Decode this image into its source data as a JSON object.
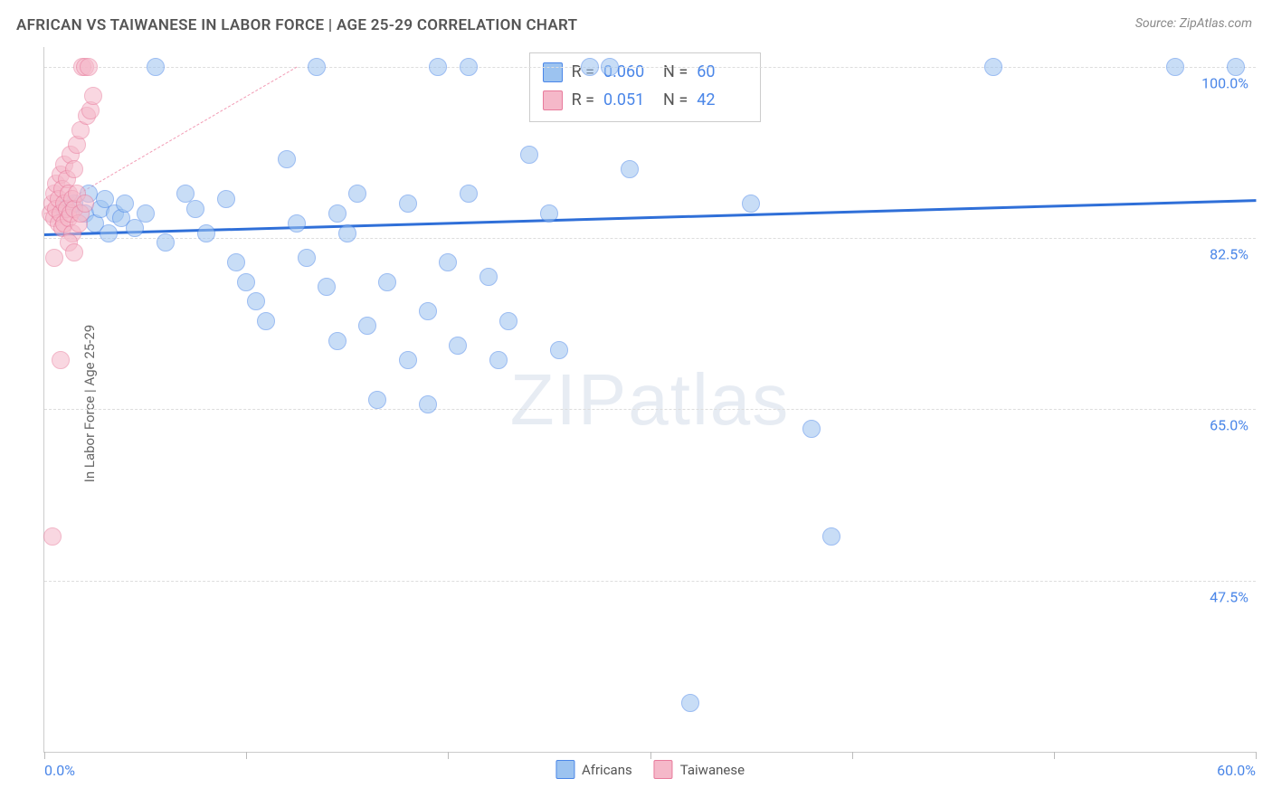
{
  "title": "AFRICAN VS TAIWANESE IN LABOR FORCE | AGE 25-29 CORRELATION CHART",
  "source": "Source: ZipAtlas.com",
  "y_axis_label": "In Labor Force | Age 25-29",
  "watermark": "ZIPatlas",
  "chart": {
    "type": "scatter",
    "xlim": [
      0.0,
      60.0
    ],
    "ylim": [
      30.0,
      102.0
    ],
    "x_ticks_minor": [
      0,
      10,
      20,
      30,
      40,
      50,
      60
    ],
    "x_tick_labels": {
      "min": "0.0%",
      "max": "60.0%"
    },
    "y_gridlines": [
      47.5,
      65.0,
      82.5,
      100.0
    ],
    "y_tick_labels": [
      "47.5%",
      "65.0%",
      "82.5%",
      "100.0%"
    ],
    "background_color": "#ffffff",
    "grid_color": "#dddddd",
    "axis_color": "#cccccc",
    "tick_label_color": "#4a86e8",
    "marker_radius": 10,
    "marker_opacity": 0.55,
    "series": [
      {
        "name": "Africans",
        "fill": "#9cc3f0",
        "stroke": "#4a86e8",
        "trend": {
          "y_at_xmin": 83.0,
          "y_at_xmax": 86.5,
          "color": "#2f6fd8",
          "width": 3,
          "dash": "solid"
        },
        "stats": {
          "R": "0.060",
          "N": "60"
        },
        "points": [
          [
            1.0,
            85.5
          ],
          [
            1.5,
            86.0
          ],
          [
            2.0,
            85.0
          ],
          [
            2.2,
            87.0
          ],
          [
            2.5,
            84.0
          ],
          [
            2.8,
            85.5
          ],
          [
            3.0,
            86.5
          ],
          [
            3.2,
            83.0
          ],
          [
            3.5,
            85.0
          ],
          [
            3.8,
            84.5
          ],
          [
            4.0,
            86.0
          ],
          [
            4.5,
            83.5
          ],
          [
            5.0,
            85.0
          ],
          [
            5.5,
            100.0
          ],
          [
            6.0,
            82.0
          ],
          [
            7.0,
            87.0
          ],
          [
            7.5,
            85.5
          ],
          [
            8.0,
            83.0
          ],
          [
            9.0,
            86.5
          ],
          [
            9.5,
            80.0
          ],
          [
            10.0,
            78.0
          ],
          [
            10.5,
            76.0
          ],
          [
            11.0,
            74.0
          ],
          [
            12.0,
            90.5
          ],
          [
            12.5,
            84.0
          ],
          [
            13.0,
            80.5
          ],
          [
            13.5,
            100.0
          ],
          [
            14.0,
            77.5
          ],
          [
            14.5,
            85.0
          ],
          [
            14.5,
            72.0
          ],
          [
            15.0,
            83.0
          ],
          [
            15.5,
            87.0
          ],
          [
            16.0,
            73.5
          ],
          [
            16.5,
            66.0
          ],
          [
            17.0,
            78.0
          ],
          [
            18.0,
            86.0
          ],
          [
            18.0,
            70.0
          ],
          [
            19.0,
            75.0
          ],
          [
            19.0,
            65.5
          ],
          [
            19.5,
            100.0
          ],
          [
            20.0,
            80.0
          ],
          [
            20.5,
            71.5
          ],
          [
            21.0,
            87.0
          ],
          [
            21.0,
            100.0
          ],
          [
            22.0,
            78.5
          ],
          [
            22.5,
            70.0
          ],
          [
            23.0,
            74.0
          ],
          [
            24.0,
            91.0
          ],
          [
            25.0,
            85.0
          ],
          [
            25.5,
            71.0
          ],
          [
            27.0,
            100.0
          ],
          [
            28.0,
            100.0
          ],
          [
            29.0,
            89.5
          ],
          [
            32.0,
            35.0
          ],
          [
            35.0,
            86.0
          ],
          [
            38.0,
            63.0
          ],
          [
            39.0,
            52.0
          ],
          [
            47.0,
            100.0
          ],
          [
            56.0,
            100.0
          ],
          [
            59.0,
            100.0
          ]
        ]
      },
      {
        "name": "Taiwanese",
        "fill": "#f5b8c9",
        "stroke": "#e87a9b",
        "trend": {
          "y_at_xmin": 85.0,
          "y_at_xmax_partial": 100.0,
          "x_end": 12.5,
          "color": "#f29cb5",
          "width": 1.5,
          "dash": "dashed"
        },
        "stats": {
          "R": "0.051",
          "N": "42"
        },
        "points": [
          [
            0.3,
            85.0
          ],
          [
            0.4,
            86.0
          ],
          [
            0.5,
            84.5
          ],
          [
            0.5,
            87.0
          ],
          [
            0.6,
            85.5
          ],
          [
            0.6,
            88.0
          ],
          [
            0.7,
            84.0
          ],
          [
            0.7,
            86.5
          ],
          [
            0.8,
            85.0
          ],
          [
            0.8,
            89.0
          ],
          [
            0.9,
            87.5
          ],
          [
            0.9,
            83.5
          ],
          [
            1.0,
            86.0
          ],
          [
            1.0,
            84.0
          ],
          [
            1.0,
            90.0
          ],
          [
            1.1,
            85.5
          ],
          [
            1.1,
            88.5
          ],
          [
            1.2,
            84.5
          ],
          [
            1.2,
            87.0
          ],
          [
            1.3,
            85.0
          ],
          [
            1.3,
            91.0
          ],
          [
            1.4,
            86.5
          ],
          [
            1.4,
            83.0
          ],
          [
            1.5,
            85.5
          ],
          [
            1.5,
            89.5
          ],
          [
            1.6,
            87.0
          ],
          [
            1.6,
            92.0
          ],
          [
            1.7,
            84.0
          ],
          [
            1.8,
            93.5
          ],
          [
            1.8,
            85.0
          ],
          [
            1.9,
            100.0
          ],
          [
            2.0,
            100.0
          ],
          [
            2.0,
            86.0
          ],
          [
            2.1,
            95.0
          ],
          [
            2.2,
            100.0
          ],
          [
            2.3,
            95.5
          ],
          [
            2.4,
            97.0
          ],
          [
            0.5,
            80.5
          ],
          [
            0.8,
            70.0
          ],
          [
            0.4,
            52.0
          ],
          [
            1.2,
            82.0
          ],
          [
            1.5,
            81.0
          ]
        ]
      }
    ]
  },
  "bottom_legend": [
    {
      "label": "Africans",
      "fill": "#9cc3f0",
      "stroke": "#4a86e8"
    },
    {
      "label": "Taiwanese",
      "fill": "#f5b8c9",
      "stroke": "#e87a9b"
    }
  ]
}
